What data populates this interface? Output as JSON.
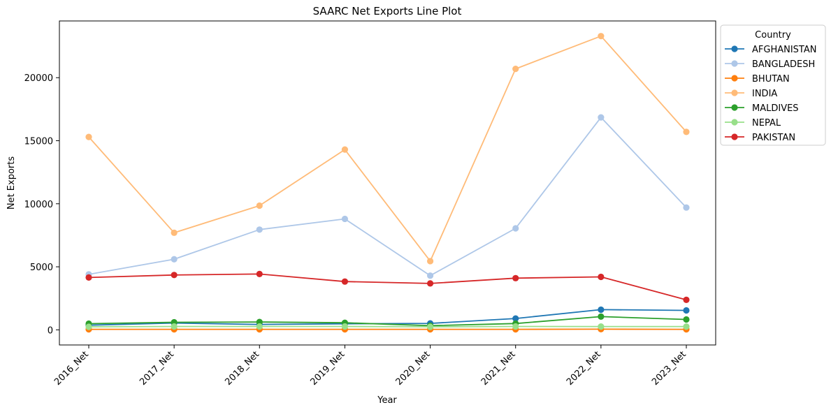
{
  "chart_data": {
    "type": "line",
    "title": "SAARC Net Exports Line Plot",
    "xlabel": "Year",
    "ylabel": "Net Exports",
    "categories": [
      "2016_Net",
      "2017_Net",
      "2018_Net",
      "2019_Net",
      "2020_Net",
      "2021_Net",
      "2022_Net",
      "2023_Net"
    ],
    "y_ticks": [
      0,
      5000,
      10000,
      15000,
      20000
    ],
    "ylim": [
      -1200,
      24500
    ],
    "grid": false,
    "legend": {
      "title": "Country",
      "placement": "outside right, top"
    },
    "series": [
      {
        "name": "AFGHANISTAN",
        "color": "#1f77b4",
        "values": [
          370,
          540,
          430,
          480,
          510,
          900,
          1600,
          1540
        ]
      },
      {
        "name": "BANGLADESH",
        "color": "#aec7e8",
        "values": [
          4400,
          5600,
          7950,
          8800,
          4300,
          8050,
          16850,
          9700
        ]
      },
      {
        "name": "BHUTAN",
        "color": "#ff7f0e",
        "values": [
          40,
          40,
          40,
          40,
          40,
          40,
          50,
          40
        ]
      },
      {
        "name": "INDIA",
        "color": "#ffbb78",
        "values": [
          15300,
          7700,
          9850,
          14300,
          5450,
          20700,
          23300,
          15700
        ]
      },
      {
        "name": "MALDIVES",
        "color": "#2ca02c",
        "values": [
          490,
          600,
          620,
          560,
          330,
          500,
          1050,
          820
        ]
      },
      {
        "name": "NEPAL",
        "color": "#98df8a",
        "values": [
          240,
          270,
          270,
          270,
          240,
          270,
          260,
          260
        ]
      },
      {
        "name": "PAKISTAN",
        "color": "#d62728",
        "values": [
          4150,
          4350,
          4430,
          3830,
          3680,
          4100,
          4200,
          2380
        ]
      }
    ]
  }
}
